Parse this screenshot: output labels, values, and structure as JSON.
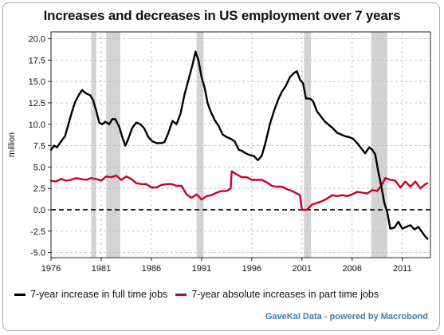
{
  "chart_data": {
    "type": "line",
    "title": "Increases and decreases in US employment over 7 years",
    "ylabel": "million",
    "xlabel": "",
    "xlim": [
      1976,
      2013.8
    ],
    "ylim": [
      -5.6,
      20.8
    ],
    "yticks": [
      -5.0,
      -2.5,
      0.0,
      2.5,
      5.0,
      7.5,
      10.0,
      12.5,
      15.0,
      17.5,
      20.0
    ],
    "ytick_labels": [
      "-5.0",
      "-2.5",
      "0.0",
      "2.5",
      "5.0",
      "7.5",
      "10.0",
      "12.5",
      "15.0",
      "17.5",
      "20.0"
    ],
    "xticks": [
      1976,
      1981,
      1986,
      1991,
      1996,
      2001,
      2006,
      2011
    ],
    "xtick_labels": [
      "1976",
      "1981",
      "1986",
      "1991",
      "1996",
      "2001",
      "2006",
      "2011"
    ],
    "grid": true,
    "zero_line": "dashed",
    "recessions": [
      [
        1980.0,
        1980.5
      ],
      [
        1981.5,
        1982.9
      ],
      [
        1990.5,
        1991.2
      ],
      [
        2001.2,
        2001.9
      ],
      [
        2007.9,
        2009.5
      ]
    ],
    "series": [
      {
        "name": "7-year increase in full time jobs",
        "color": "#000000",
        "points": [
          [
            1976.0,
            7.0
          ],
          [
            1976.3,
            7.5
          ],
          [
            1976.6,
            7.3
          ],
          [
            1977.0,
            8.0
          ],
          [
            1977.4,
            8.6
          ],
          [
            1977.8,
            10.3
          ],
          [
            1978.1,
            11.5
          ],
          [
            1978.4,
            12.6
          ],
          [
            1978.8,
            13.5
          ],
          [
            1979.1,
            14.0
          ],
          [
            1979.5,
            13.6
          ],
          [
            1979.9,
            13.4
          ],
          [
            1980.2,
            12.8
          ],
          [
            1980.5,
            11.6
          ],
          [
            1980.8,
            10.2
          ],
          [
            1981.1,
            10.0
          ],
          [
            1981.4,
            10.3
          ],
          [
            1981.8,
            10.0
          ],
          [
            1982.1,
            10.6
          ],
          [
            1982.4,
            10.6
          ],
          [
            1982.8,
            9.7
          ],
          [
            1983.1,
            8.5
          ],
          [
            1983.4,
            7.5
          ],
          [
            1983.7,
            8.3
          ],
          [
            1984.1,
            9.6
          ],
          [
            1984.5,
            10.2
          ],
          [
            1984.9,
            10.0
          ],
          [
            1985.3,
            9.5
          ],
          [
            1985.7,
            8.5
          ],
          [
            1986.1,
            8.0
          ],
          [
            1986.5,
            7.8
          ],
          [
            1986.9,
            7.8
          ],
          [
            1987.3,
            7.9
          ],
          [
            1987.7,
            9.0
          ],
          [
            1988.1,
            10.4
          ],
          [
            1988.5,
            10.0
          ],
          [
            1988.9,
            11.2
          ],
          [
            1989.3,
            13.5
          ],
          [
            1989.7,
            15.2
          ],
          [
            1990.1,
            17.0
          ],
          [
            1990.4,
            18.5
          ],
          [
            1990.7,
            17.4
          ],
          [
            1991.0,
            15.5
          ],
          [
            1991.3,
            14.3
          ],
          [
            1991.6,
            12.5
          ],
          [
            1991.9,
            11.5
          ],
          [
            1992.3,
            10.5
          ],
          [
            1992.7,
            9.8
          ],
          [
            1993.1,
            8.8
          ],
          [
            1993.5,
            8.5
          ],
          [
            1993.9,
            8.3
          ],
          [
            1994.3,
            8.0
          ],
          [
            1994.7,
            7.0
          ],
          [
            1995.0,
            6.9
          ],
          [
            1995.4,
            6.6
          ],
          [
            1995.8,
            6.4
          ],
          [
            1996.2,
            6.3
          ],
          [
            1996.6,
            5.8
          ],
          [
            1997.0,
            6.3
          ],
          [
            1997.4,
            8.0
          ],
          [
            1997.8,
            10.0
          ],
          [
            1998.2,
            11.5
          ],
          [
            1998.6,
            12.8
          ],
          [
            1999.0,
            13.8
          ],
          [
            1999.4,
            14.5
          ],
          [
            1999.8,
            15.5
          ],
          [
            2000.2,
            16.0
          ],
          [
            2000.5,
            16.2
          ],
          [
            2000.8,
            15.2
          ],
          [
            2001.1,
            14.8
          ],
          [
            2001.4,
            13.0
          ],
          [
            2001.8,
            13.0
          ],
          [
            2002.1,
            12.7
          ],
          [
            2002.5,
            11.5
          ],
          [
            2002.9,
            10.9
          ],
          [
            2003.3,
            10.3
          ],
          [
            2003.7,
            9.9
          ],
          [
            2004.1,
            9.5
          ],
          [
            2004.5,
            9.0
          ],
          [
            2004.9,
            8.8
          ],
          [
            2005.3,
            8.6
          ],
          [
            2005.7,
            8.5
          ],
          [
            2006.1,
            8.3
          ],
          [
            2006.5,
            7.8
          ],
          [
            2006.9,
            7.2
          ],
          [
            2007.3,
            6.6
          ],
          [
            2007.7,
            7.3
          ],
          [
            2008.0,
            7.0
          ],
          [
            2008.3,
            6.5
          ],
          [
            2008.6,
            4.5
          ],
          [
            2008.9,
            2.8
          ],
          [
            2009.2,
            0.8
          ],
          [
            2009.5,
            -0.3
          ],
          [
            2009.8,
            -2.2
          ],
          [
            2010.2,
            -2.1
          ],
          [
            2010.6,
            -1.4
          ],
          [
            2011.0,
            -2.2
          ],
          [
            2011.4,
            -2.0
          ],
          [
            2011.8,
            -1.8
          ],
          [
            2012.2,
            -2.3
          ],
          [
            2012.6,
            -2.0
          ],
          [
            2012.9,
            -2.5
          ],
          [
            2013.2,
            -3.0
          ],
          [
            2013.5,
            -3.4
          ]
        ]
      },
      {
        "name": "7-year absolute increases in part time jobs",
        "color": "#cc0022",
        "points": [
          [
            1976.0,
            3.4
          ],
          [
            1976.5,
            3.3
          ],
          [
            1977.0,
            3.6
          ],
          [
            1977.5,
            3.4
          ],
          [
            1978.0,
            3.5
          ],
          [
            1978.5,
            3.7
          ],
          [
            1979.0,
            3.6
          ],
          [
            1979.5,
            3.5
          ],
          [
            1980.0,
            3.7
          ],
          [
            1980.5,
            3.6
          ],
          [
            1981.0,
            3.4
          ],
          [
            1981.5,
            3.9
          ],
          [
            1982.0,
            3.8
          ],
          [
            1982.5,
            4.0
          ],
          [
            1983.0,
            3.5
          ],
          [
            1983.5,
            3.9
          ],
          [
            1984.0,
            3.6
          ],
          [
            1984.5,
            3.1
          ],
          [
            1985.0,
            3.0
          ],
          [
            1985.5,
            3.0
          ],
          [
            1986.0,
            2.6
          ],
          [
            1986.5,
            2.6
          ],
          [
            1987.0,
            2.9
          ],
          [
            1987.5,
            3.0
          ],
          [
            1988.0,
            3.0
          ],
          [
            1988.5,
            2.8
          ],
          [
            1989.0,
            2.8
          ],
          [
            1989.5,
            1.8
          ],
          [
            1990.0,
            1.4
          ],
          [
            1990.5,
            1.8
          ],
          [
            1991.0,
            1.2
          ],
          [
            1991.5,
            1.6
          ],
          [
            1992.0,
            1.7
          ],
          [
            1992.5,
            2.0
          ],
          [
            1993.0,
            2.2
          ],
          [
            1993.5,
            2.2
          ],
          [
            1993.9,
            2.5
          ],
          [
            1994.0,
            4.5
          ],
          [
            1994.4,
            4.2
          ],
          [
            1995.0,
            3.8
          ],
          [
            1995.5,
            3.8
          ],
          [
            1996.0,
            3.5
          ],
          [
            1996.5,
            3.5
          ],
          [
            1997.0,
            3.5
          ],
          [
            1997.5,
            3.2
          ],
          [
            1998.0,
            2.8
          ],
          [
            1998.5,
            2.7
          ],
          [
            1999.0,
            2.7
          ],
          [
            1999.5,
            2.4
          ],
          [
            2000.0,
            2.2
          ],
          [
            2000.5,
            1.9
          ],
          [
            2000.8,
            1.7
          ],
          [
            2001.0,
            0.0
          ],
          [
            2001.5,
            0.0
          ],
          [
            2002.0,
            0.6
          ],
          [
            2002.5,
            0.8
          ],
          [
            2003.0,
            1.0
          ],
          [
            2003.5,
            1.3
          ],
          [
            2004.0,
            1.7
          ],
          [
            2004.5,
            1.6
          ],
          [
            2005.0,
            1.7
          ],
          [
            2005.5,
            1.6
          ],
          [
            2006.0,
            1.8
          ],
          [
            2006.5,
            2.1
          ],
          [
            2007.0,
            2.0
          ],
          [
            2007.5,
            1.9
          ],
          [
            2008.0,
            2.3
          ],
          [
            2008.5,
            2.2
          ],
          [
            2009.0,
            3.0
          ],
          [
            2009.3,
            3.7
          ],
          [
            2009.8,
            3.5
          ],
          [
            2010.3,
            3.4
          ],
          [
            2010.8,
            2.6
          ],
          [
            2011.3,
            3.3
          ],
          [
            2011.8,
            2.7
          ],
          [
            2012.3,
            3.3
          ],
          [
            2012.8,
            2.5
          ],
          [
            2013.3,
            3.0
          ],
          [
            2013.5,
            3.1
          ]
        ]
      }
    ]
  },
  "legend": {
    "full_time": "7-year increase in full time jobs",
    "part_time": "7-year absolute increases in part time jobs"
  },
  "credit": "GaveKal Data - powered by Macrobond"
}
